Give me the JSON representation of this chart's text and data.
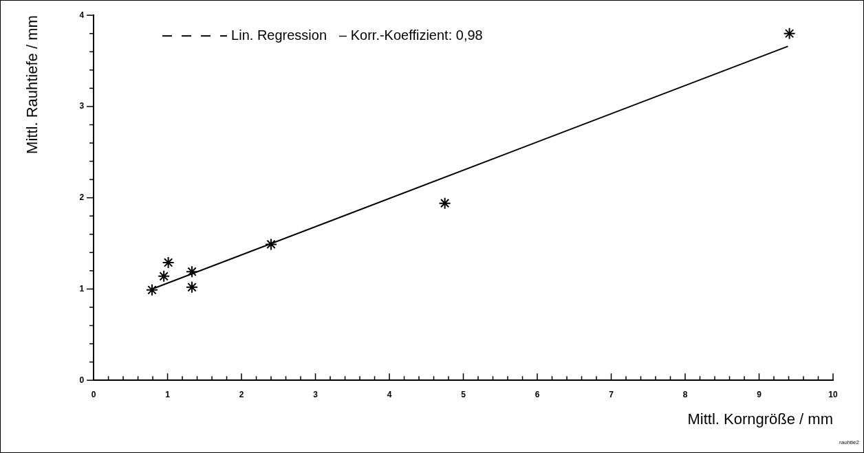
{
  "chart_data": {
    "type": "scatter",
    "xlabel": "Mittl. Korngröße / mm",
    "ylabel": "Mittl. Rauhtiefe / mm",
    "annotations": [
      "– Korr.-Koeffizient: 0,98",
      "rauhtie2"
    ],
    "xlim": [
      0,
      10
    ],
    "ylim": [
      0,
      4
    ],
    "xticks": [
      0,
      {
        "value": 0.2,
        "label": null
      },
      {
        "value": 0.4,
        "label": null
      },
      {
        "value": 0.6,
        "label": null
      },
      {
        "value": 0.8,
        "label": null
      },
      1,
      {
        "value": 1.2,
        "label": null
      },
      {
        "value": 1.4,
        "label": null
      },
      {
        "value": 1.6,
        "label": null
      },
      {
        "value": 1.8,
        "label": null
      },
      2,
      {
        "value": 2.2,
        "label": null
      },
      {
        "value": 2.4,
        "label": null
      },
      {
        "value": 2.6,
        "label": null
      },
      {
        "value": 2.8,
        "label": null
      },
      3,
      {
        "value": 3.2,
        "label": null
      },
      {
        "value": 3.4,
        "label": null
      },
      {
        "value": 3.6,
        "label": null
      },
      {
        "value": 3.8,
        "label": null
      },
      4,
      {
        "value": 4.2,
        "label": null
      },
      {
        "value": 4.4,
        "label": null
      },
      {
        "value": 4.6,
        "label": null
      },
      {
        "value": 4.8,
        "label": null
      },
      5,
      {
        "value": 5.2,
        "label": null
      },
      {
        "value": 5.4,
        "label": null
      },
      {
        "value": 5.6,
        "label": null
      },
      {
        "value": 5.8,
        "label": null
      },
      6,
      {
        "value": 6.2,
        "label": null
      },
      {
        "value": 6.4,
        "label": null
      },
      {
        "value": 6.6,
        "label": null
      },
      {
        "value": 6.8,
        "label": null
      },
      7,
      {
        "value": 7.2,
        "label": null
      },
      {
        "value": 7.4,
        "label": null
      },
      {
        "value": 7.6,
        "label": null
      },
      {
        "value": 7.8,
        "label": null
      },
      8,
      {
        "value": 8.2,
        "label": null
      },
      {
        "value": 8.4,
        "label": null
      },
      {
        "value": 8.6,
        "label": null
      },
      {
        "value": 8.8,
        "label": null
      },
      9,
      {
        "value": 9.2,
        "label": null
      },
      {
        "value": 9.4,
        "label": null
      },
      {
        "value": 9.6,
        "label": null
      },
      {
        "value": 9.8,
        "label": null
      },
      10
    ],
    "yticks": [
      0,
      {
        "value": 0.2,
        "label": null
      },
      {
        "value": 0.4,
        "label": null
      },
      {
        "value": 0.6,
        "label": null
      },
      {
        "value": 0.8,
        "label": null
      },
      1,
      {
        "value": 1.2,
        "label": null
      },
      {
        "value": 1.4,
        "label": null
      },
      {
        "value": 1.6,
        "label": null
      },
      {
        "value": 1.8,
        "label": null
      },
      2,
      {
        "value": 2.2,
        "label": null
      },
      {
        "value": 2.4,
        "label": null
      },
      {
        "value": 2.6,
        "label": null
      },
      {
        "value": 2.8,
        "label": null
      },
      3,
      {
        "value": 3.2,
        "label": null
      },
      {
        "value": 3.4,
        "label": null
      },
      {
        "value": 3.6,
        "label": null
      },
      {
        "value": 3.8,
        "label": null
      },
      4
    ],
    "grid": false,
    "legend": "top left",
    "series": [
      {
        "color": "#000000",
        "marker": "cross",
        "x": [
          0.79,
          0.95,
          1.01,
          1.33,
          1.33,
          2.4,
          4.75,
          9.41
        ],
        "values": [
          0.99,
          1.14,
          1.29,
          1.19,
          1.02,
          1.49,
          1.94,
          3.8
        ]
      },
      {
        "name": "Lin. Regression",
        "type": "line",
        "color": "#000000",
        "x": [
          0.79,
          9.39
        ],
        "values": [
          1.0,
          3.66
        ]
      }
    ]
  }
}
